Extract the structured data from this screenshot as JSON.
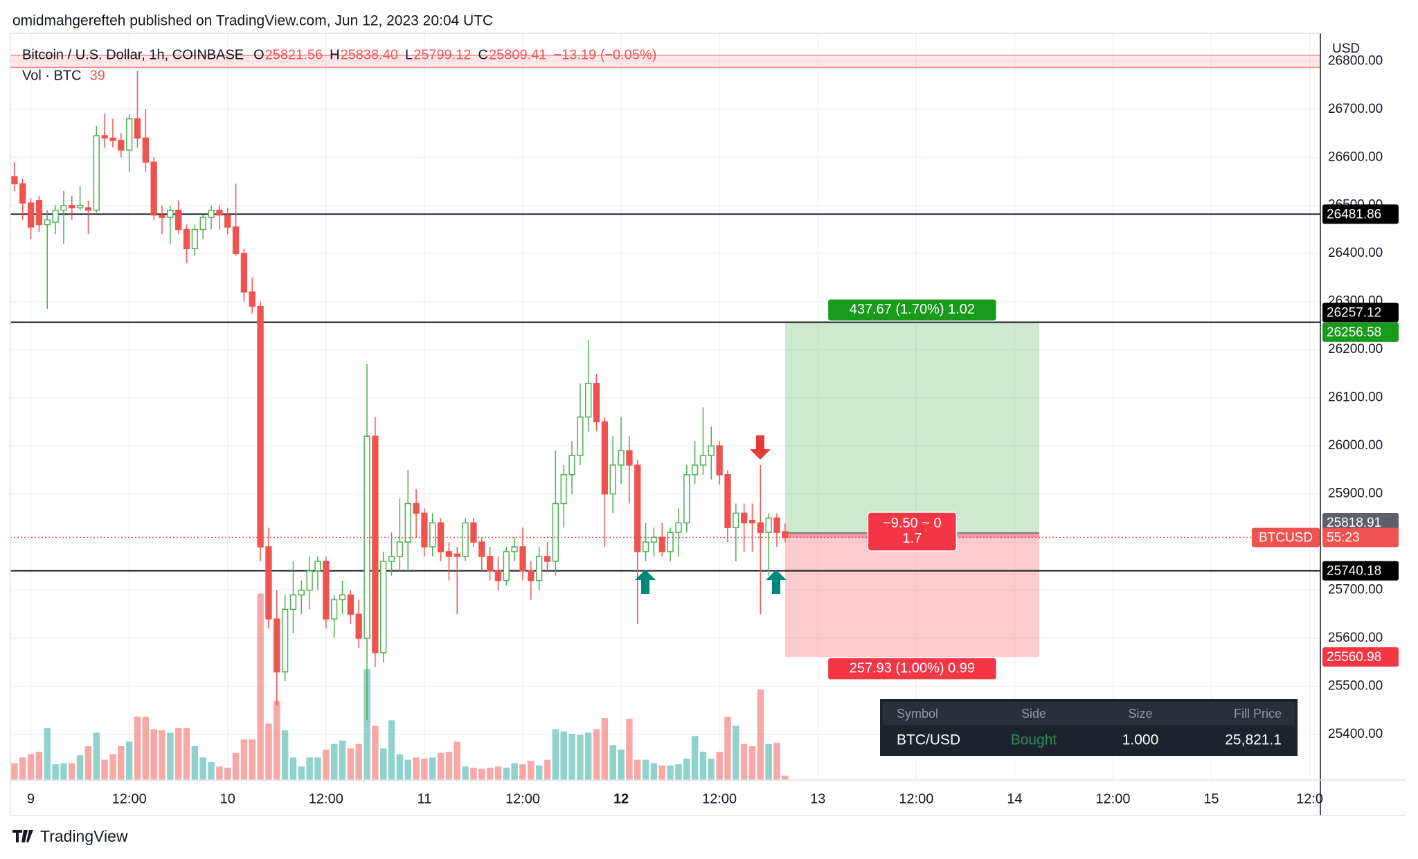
{
  "attribution": "omidmahgerefteh published on TradingView.com, Jun 12, 2023 20:04 UTC",
  "brand": "TradingView",
  "trade_table": {
    "columns": [
      "Symbol",
      "Side",
      "Size",
      "Fill Price"
    ],
    "row": [
      "BTC/USD",
      "Bought",
      "1.000",
      "25,821.1"
    ]
  },
  "chart_data": {
    "type": "candlestick",
    "title": "Bitcoin / U.S. Dollar, 1h, COINBASE",
    "legend": [
      {
        "key": "O",
        "value": "25821.56"
      },
      {
        "key": "H",
        "value": "25838.40"
      },
      {
        "key": "L",
        "value": "25799.12"
      },
      {
        "key": "C",
        "value": "25809.41"
      }
    ],
    "change": "−13.19 (−0.05%)",
    "volume_title": "Vol · BTC",
    "currency": "USD",
    "up_color": "#4caf50",
    "down_color": "#ef5350",
    "ohlc": [
      [
        26560,
        26590,
        26530,
        26545
      ],
      [
        26545,
        26555,
        26470,
        26505
      ],
      [
        26505,
        26515,
        26430,
        26455
      ],
      [
        26510,
        26520,
        26445,
        26460
      ],
      [
        26460,
        26490,
        26285,
        26470
      ],
      [
        26465,
        26500,
        26440,
        26490
      ],
      [
        26490,
        26530,
        26420,
        26500
      ],
      [
        26500,
        26520,
        26470,
        26495
      ],
      [
        26495,
        26540,
        26490,
        26500
      ],
      [
        26495,
        26510,
        26440,
        26490
      ],
      [
        26490,
        26665,
        26485,
        26645
      ],
      [
        26645,
        26690,
        26620,
        26640
      ],
      [
        26640,
        26680,
        26620,
        26635
      ],
      [
        26635,
        26650,
        26600,
        26615
      ],
      [
        26615,
        26690,
        26570,
        26680
      ],
      [
        26680,
        26780,
        26620,
        26640
      ],
      [
        26640,
        26700,
        26570,
        26590
      ],
      [
        26590,
        26600,
        26470,
        26480
      ],
      [
        26480,
        26500,
        26440,
        26475
      ],
      [
        26475,
        26500,
        26420,
        26490
      ],
      [
        26490,
        26510,
        26440,
        26450
      ],
      [
        26450,
        26460,
        26380,
        26410
      ],
      [
        26410,
        26460,
        26395,
        26450
      ],
      [
        26450,
        26480,
        26430,
        26475
      ],
      [
        26475,
        26500,
        26450,
        26490
      ],
      [
        26490,
        26500,
        26450,
        26480
      ],
      [
        26480,
        26495,
        26440,
        26455
      ],
      [
        26455,
        26545,
        26395,
        26400
      ],
      [
        26400,
        26410,
        26300,
        26320
      ],
      [
        26320,
        26350,
        26275,
        26290
      ],
      [
        26290,
        26300,
        25760,
        25790
      ],
      [
        25790,
        25830,
        25620,
        25640
      ],
      [
        25640,
        25700,
        25460,
        25530
      ],
      [
        25530,
        25690,
        25510,
        25660
      ],
      [
        25660,
        25760,
        25610,
        25690
      ],
      [
        25690,
        25720,
        25650,
        25700
      ],
      [
        25700,
        25770,
        25660,
        25740
      ],
      [
        25740,
        25770,
        25700,
        25760
      ],
      [
        25760,
        25770,
        25620,
        25640
      ],
      [
        25640,
        25690,
        25600,
        25680
      ],
      [
        25680,
        25720,
        25650,
        25690
      ],
      [
        25690,
        25700,
        25630,
        25650
      ],
      [
        25650,
        25680,
        25580,
        25600
      ],
      [
        25600,
        26170,
        25430,
        26020
      ],
      [
        26020,
        26060,
        25540,
        25570
      ],
      [
        25570,
        25780,
        25550,
        25760
      ],
      [
        25760,
        25820,
        25730,
        25770
      ],
      [
        25770,
        25890,
        25740,
        25800
      ],
      [
        25800,
        25950,
        25740,
        25880
      ],
      [
        25880,
        25910,
        25810,
        25860
      ],
      [
        25860,
        25870,
        25770,
        25790
      ],
      [
        25790,
        25860,
        25770,
        25840
      ],
      [
        25840,
        25850,
        25760,
        25780
      ],
      [
        25780,
        25800,
        25720,
        25770
      ],
      [
        25775,
        25790,
        25650,
        25770
      ],
      [
        25770,
        25850,
        25760,
        25840
      ],
      [
        25840,
        25850,
        25790,
        25800
      ],
      [
        25800,
        25810,
        25740,
        25770
      ],
      [
        25770,
        25790,
        25720,
        25740
      ],
      [
        25740,
        25770,
        25700,
        25720
      ],
      [
        25720,
        25790,
        25710,
        25780
      ],
      [
        25780,
        25810,
        25760,
        25790
      ],
      [
        25790,
        25830,
        25720,
        25740
      ],
      [
        25740,
        25760,
        25680,
        25720
      ],
      [
        25720,
        25790,
        25700,
        25770
      ],
      [
        25770,
        25800,
        25740,
        25760
      ],
      [
        25760,
        25990,
        25730,
        25880
      ],
      [
        25880,
        25960,
        25830,
        25940
      ],
      [
        25940,
        26010,
        25900,
        25980
      ],
      [
        25980,
        26130,
        25960,
        26060
      ],
      [
        26060,
        26220,
        26030,
        26130
      ],
      [
        26130,
        26150,
        26030,
        26050
      ],
      [
        26050,
        26060,
        25790,
        25900
      ],
      [
        25900,
        26020,
        25860,
        25960
      ],
      [
        25960,
        26060,
        25920,
        25990
      ],
      [
        25990,
        26020,
        25880,
        25960
      ],
      [
        25960,
        25970,
        25630,
        25780
      ],
      [
        25780,
        25840,
        25760,
        25800
      ],
      [
        25800,
        25830,
        25770,
        25810
      ],
      [
        25810,
        25840,
        25770,
        25780
      ],
      [
        25780,
        25830,
        25760,
        25820
      ],
      [
        25820,
        25870,
        25770,
        25840
      ],
      [
        25840,
        25960,
        25820,
        25940
      ],
      [
        25940,
        26010,
        25920,
        25960
      ],
      [
        25960,
        26080,
        25940,
        25980
      ],
      [
        25980,
        26040,
        25930,
        26000
      ],
      [
        26000,
        26010,
        25920,
        25940
      ],
      [
        25940,
        25950,
        25800,
        25830
      ],
      [
        25830,
        25880,
        25760,
        25860
      ],
      [
        25860,
        25880,
        25780,
        25840
      ],
      [
        25845,
        25880,
        25780,
        25840
      ],
      [
        25840,
        25960,
        25650,
        25820
      ],
      [
        25820,
        25860,
        25730,
        25850
      ],
      [
        25850,
        25860,
        25790,
        25820
      ],
      [
        25821.56,
        25838.4,
        25799.12,
        25809.41
      ]
    ],
    "volume": [
      150,
      200,
      230,
      250,
      460,
      140,
      150,
      150,
      220,
      300,
      420,
      180,
      230,
      300,
      340,
      560,
      560,
      450,
      440,
      420,
      460,
      460,
      300,
      200,
      160,
      120,
      110,
      240,
      360,
      360,
      1650,
      500,
      700,
      440,
      200,
      120,
      200,
      200,
      270,
      320,
      350,
      280,
      320,
      980,
      480,
      280,
      530,
      230,
      180,
      200,
      190,
      200,
      240,
      250,
      340,
      120,
      110,
      100,
      110,
      120,
      110,
      150,
      140,
      170,
      130,
      180,
      450,
      430,
      410,
      400,
      420,
      450,
      550,
      310,
      270,
      540,
      180,
      180,
      150,
      130,
      130,
      140,
      190,
      390,
      250,
      190,
      250,
      560,
      480,
      320,
      300,
      800,
      320,
      330,
      39
    ],
    "volume_ylim": [
      0,
      2400
    ],
    "ylim": [
      25305,
      26858
    ],
    "yticks": [
      {
        "value": 25400,
        "label": "25400.00"
      },
      {
        "value": 25500,
        "label": "25500.00"
      },
      {
        "value": 25600,
        "label": "25600.00"
      },
      {
        "value": 25700,
        "label": "25700.00"
      },
      {
        "value": 25800,
        "label": "25800.00"
      },
      {
        "value": 25900,
        "label": "25900.00"
      },
      {
        "value": 26000,
        "label": "26000.00"
      },
      {
        "value": 26100,
        "label": "26100.00"
      },
      {
        "value": 26200,
        "label": "26200.00"
      },
      {
        "value": 26300,
        "label": "26300.00"
      },
      {
        "value": 26400,
        "label": "26400.00"
      },
      {
        "value": 26500,
        "label": "26500.00"
      },
      {
        "value": 26600,
        "label": "26600.00"
      },
      {
        "value": 26700,
        "label": "26700.00"
      },
      {
        "value": 26800,
        "label": "26800.00"
      }
    ],
    "xlim": [
      -0.5,
      159.3
    ],
    "xticks": [
      {
        "value": 2,
        "label": "9"
      },
      {
        "value": 14,
        "label": "12:00"
      },
      {
        "value": 26,
        "label": "10"
      },
      {
        "value": 38,
        "label": "12:00"
      },
      {
        "value": 50,
        "label": "11"
      },
      {
        "value": 62,
        "label": "12:00"
      },
      {
        "value": 74,
        "label": "12"
      },
      {
        "value": 86,
        "label": "12:00"
      },
      {
        "value": 98,
        "label": "13"
      },
      {
        "value": 110,
        "label": "12:00"
      },
      {
        "value": 122,
        "label": "14"
      },
      {
        "value": 134,
        "label": "12:00"
      },
      {
        "value": 146,
        "label": "15"
      },
      {
        "value": 158,
        "label": "12:0"
      }
    ],
    "grid": true,
    "zone": [
      26787,
      26812
    ],
    "hlines": [
      26481.86,
      26257.12,
      25740.18
    ],
    "position": {
      "entry": 25818.91,
      "target": 26256.58,
      "stop": 25560.98,
      "target_label": "437.67 (1.70%) 1.02",
      "stop_label": "257.93 (1.00%) 0.99",
      "pnl_label": "−9.50 ~ 0",
      "ratio_label": "1.7"
    },
    "symbol": "BTCUSD",
    "countdown": "55:23"
  }
}
